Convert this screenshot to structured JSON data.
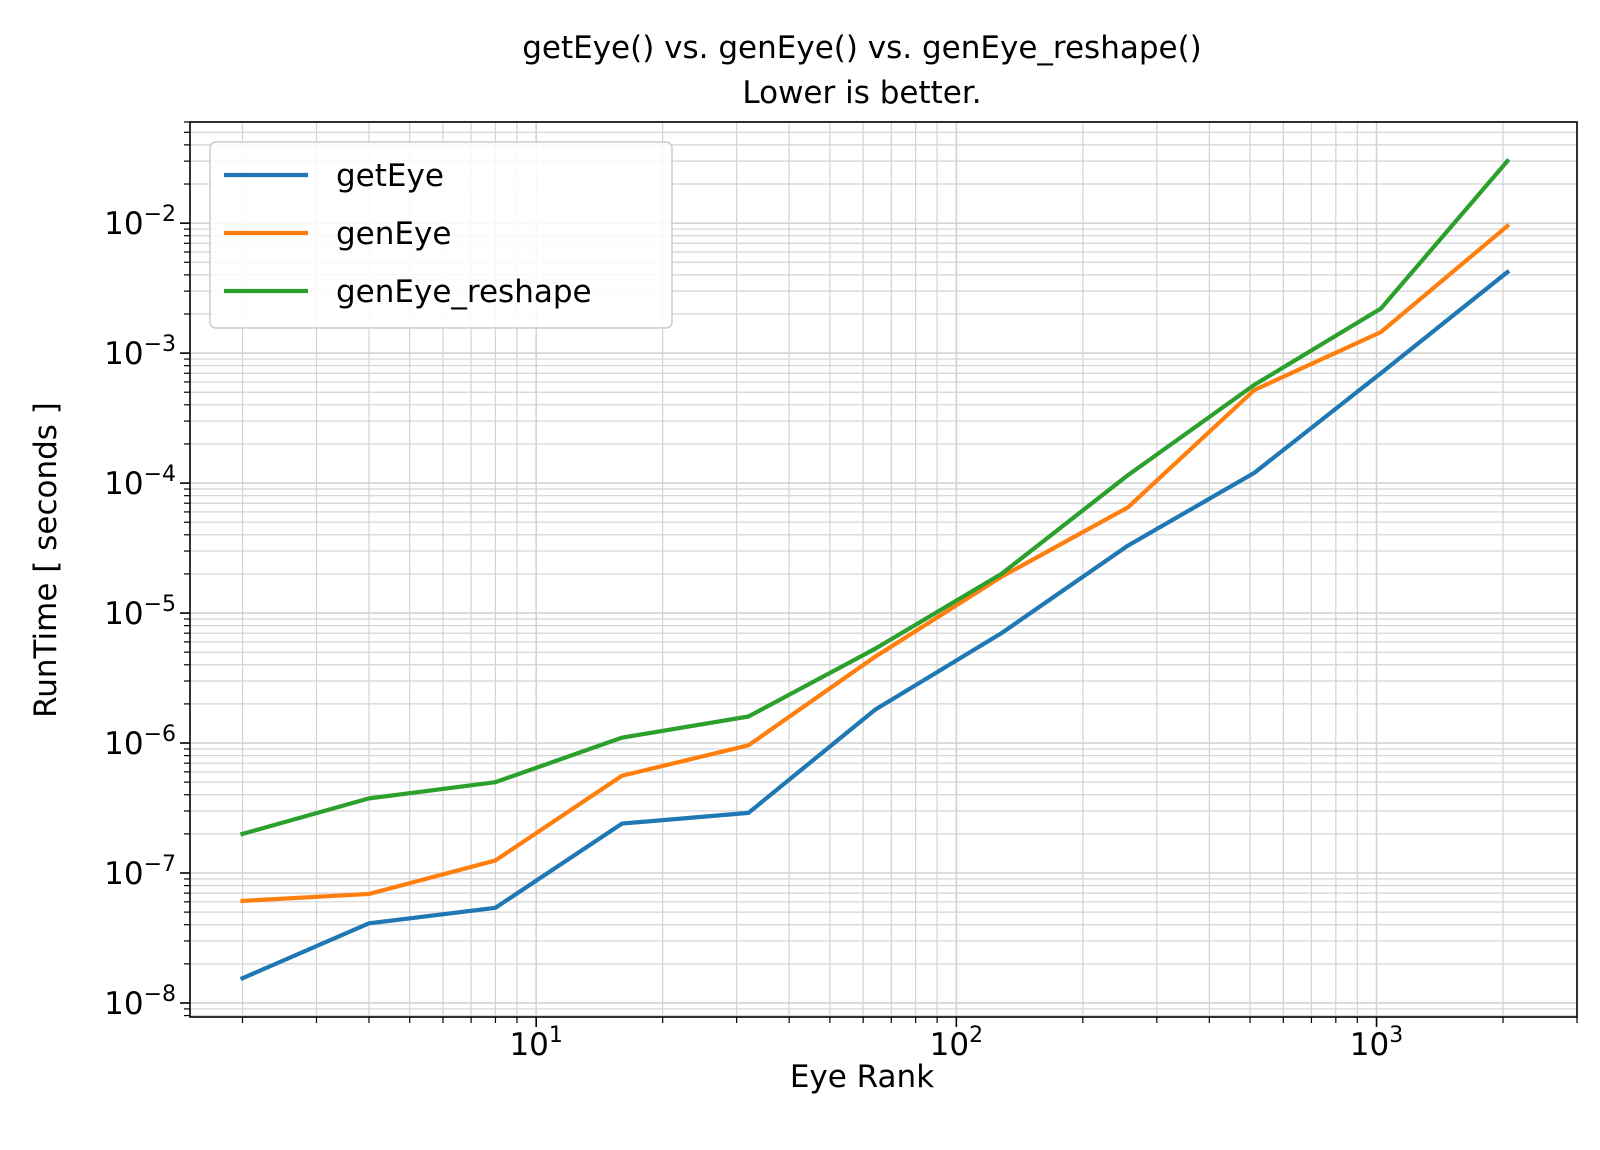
{
  "chart_data": {
    "type": "line",
    "title": "getEye() vs. genEye() vs. genEye_reshape()",
    "subtitle": "Lower is better.",
    "xlabel": "Eye Rank",
    "ylabel": "RunTime [ seconds ]",
    "xscale": "log",
    "yscale": "log",
    "xlim": [
      1.5,
      3000
    ],
    "ylim": [
      7.8e-09,
      0.06
    ],
    "grid": true,
    "legend_position": "top-left",
    "x": [
      2,
      4,
      8,
      16,
      32,
      64,
      128,
      256,
      512,
      1024,
      2048
    ],
    "x_ticks": [
      {
        "base": "10",
        "exp": "1",
        "value": 10
      },
      {
        "base": "10",
        "exp": "2",
        "value": 100
      },
      {
        "base": "10",
        "exp": "3",
        "value": 1000
      }
    ],
    "y_ticks": [
      {
        "base": "10",
        "exp": "−8",
        "value": 1e-08
      },
      {
        "base": "10",
        "exp": "−7",
        "value": 1e-07
      },
      {
        "base": "10",
        "exp": "−6",
        "value": 1e-06
      },
      {
        "base": "10",
        "exp": "−5",
        "value": 1e-05
      },
      {
        "base": "10",
        "exp": "−4",
        "value": 0.0001
      },
      {
        "base": "10",
        "exp": "−3",
        "value": 0.001
      },
      {
        "base": "10",
        "exp": "−2",
        "value": 0.01
      }
    ],
    "series": [
      {
        "name": "getEye",
        "color": "#1f77b4",
        "values": [
          1.55e-08,
          4.1e-08,
          5.4e-08,
          2.4e-07,
          2.9e-07,
          1.8e-06,
          7e-06,
          3.3e-05,
          0.00012,
          0.0007,
          0.0042
        ]
      },
      {
        "name": "genEye",
        "color": "#ff7f0e",
        "values": [
          6.1e-08,
          6.9e-08,
          1.25e-07,
          5.6e-07,
          9.6e-07,
          4.6e-06,
          1.9e-05,
          6.5e-05,
          0.00052,
          0.00145,
          0.0095
        ]
      },
      {
        "name": "genEye_reshape",
        "color": "#2ca02c",
        "values": [
          2e-07,
          3.75e-07,
          5e-07,
          1.1e-06,
          1.6e-06,
          5.3e-06,
          2e-05,
          0.000115,
          0.00057,
          0.0022,
          0.03
        ]
      }
    ]
  }
}
